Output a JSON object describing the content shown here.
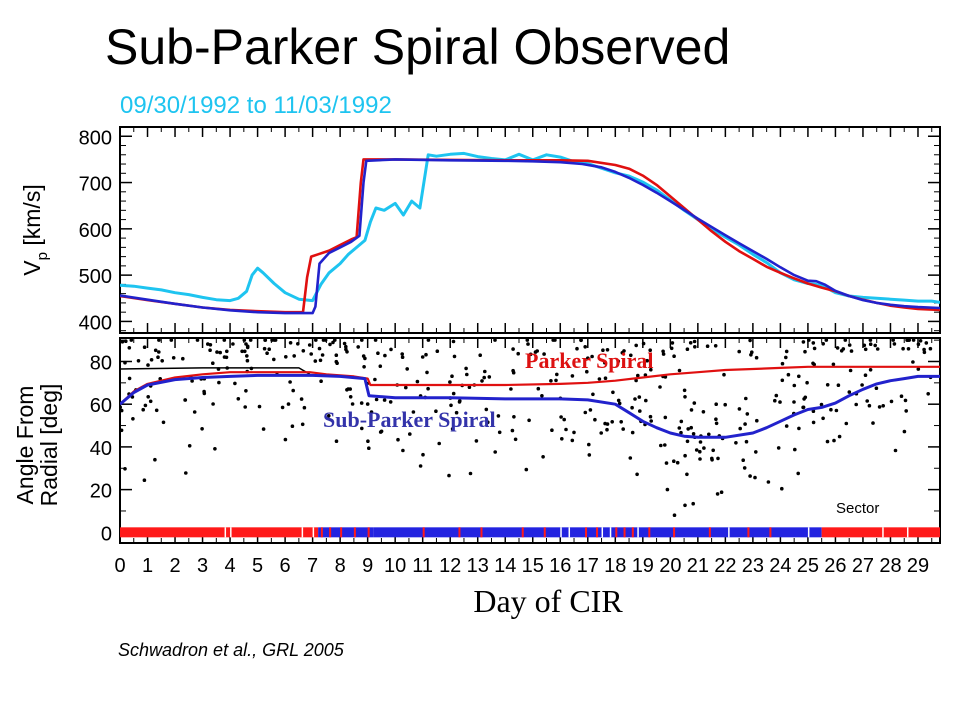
{
  "slide": {
    "title": "Sub-Parker Spiral Observed",
    "subtitle": "09/30/1992 to 11/03/1992",
    "citation": "Schwadron et al., GRL 2005"
  },
  "colors": {
    "observed_speed": "#1ec4f0",
    "model_red": "#e01010",
    "model_blue": "#2222cc",
    "parker_label": "#dd1111",
    "subparker_label": "#3333aa",
    "sector_red": "#ff1a1a",
    "sector_blue": "#2323e0",
    "scatter": "#000000"
  },
  "chart_data": [
    {
      "type": "line",
      "panel": "top",
      "ylabel_main": "V",
      "ylabel_sub": "p",
      "ylabel_unit": " [km/s]",
      "xlim": [
        0,
        29.8
      ],
      "ylim": [
        375,
        820
      ],
      "yticks": [
        400,
        500,
        600,
        700,
        800
      ],
      "series": [
        {
          "key": "observed",
          "color_key": "observed_speed",
          "points": [
            [
              0,
              478
            ],
            [
              0.5,
              476
            ],
            [
              1,
              472
            ],
            [
              1.5,
              468
            ],
            [
              2,
              462
            ],
            [
              2.5,
              458
            ],
            [
              3,
              452
            ],
            [
              3.5,
              447
            ],
            [
              4,
              445
            ],
            [
              4.3,
              450
            ],
            [
              4.6,
              465
            ],
            [
              4.8,
              500
            ],
            [
              5,
              515
            ],
            [
              5.2,
              505
            ],
            [
              5.6,
              482
            ],
            [
              6,
              462
            ],
            [
              6.5,
              448
            ],
            [
              7,
              445
            ],
            [
              7.3,
              480
            ],
            [
              7.6,
              505
            ],
            [
              8,
              525
            ],
            [
              8.3,
              545
            ],
            [
              8.6,
              560
            ],
            [
              8.9,
              575
            ],
            [
              9.1,
              615
            ],
            [
              9.3,
              645
            ],
            [
              9.6,
              640
            ],
            [
              10,
              655
            ],
            [
              10.3,
              630
            ],
            [
              10.6,
              660
            ],
            [
              10.9,
              645
            ],
            [
              11.2,
              760
            ],
            [
              11.5,
              757
            ],
            [
              12,
              761
            ],
            [
              12.5,
              763
            ],
            [
              13,
              756
            ],
            [
              13.5,
              752
            ],
            [
              14,
              749
            ],
            [
              14.5,
              761
            ],
            [
              15,
              749
            ],
            [
              15.5,
              760
            ],
            [
              16,
              755
            ],
            [
              16.5,
              745
            ],
            [
              17,
              741
            ],
            [
              17.5,
              731
            ],
            [
              18,
              721
            ],
            [
              18.5,
              714
            ],
            [
              19,
              701
            ],
            [
              19.5,
              684
            ],
            [
              20,
              662
            ],
            [
              20.5,
              640
            ],
            [
              21,
              620
            ],
            [
              21.5,
              600
            ],
            [
              22,
              582
            ],
            [
              22.5,
              565
            ],
            [
              23,
              545
            ],
            [
              23.5,
              527
            ],
            [
              24,
              505
            ],
            [
              24.5,
              490
            ],
            [
              25,
              482
            ],
            [
              25.3,
              480
            ],
            [
              25.6,
              475
            ],
            [
              26,
              462
            ],
            [
              26.5,
              455
            ],
            [
              27,
              452
            ],
            [
              27.5,
              450
            ],
            [
              28,
              448
            ],
            [
              28.5,
              446
            ],
            [
              29,
              444
            ],
            [
              29.5,
              444
            ],
            [
              29.8,
              441
            ]
          ]
        },
        {
          "key": "model_red",
          "color_key": "model_red",
          "points": [
            [
              0,
              455
            ],
            [
              1,
              446
            ],
            [
              2,
              438
            ],
            [
              3,
              430
            ],
            [
              4,
              425
            ],
            [
              5,
              422
            ],
            [
              6,
              420
            ],
            [
              6.65,
              420
            ],
            [
              6.8,
              495
            ],
            [
              6.95,
              540
            ],
            [
              7.2,
              545
            ],
            [
              7.6,
              553
            ],
            [
              8,
              565
            ],
            [
              8.4,
              577
            ],
            [
              8.6,
              582
            ],
            [
              8.75,
              700
            ],
            [
              8.85,
              750
            ],
            [
              10,
              750
            ],
            [
              12,
              749
            ],
            [
              14,
              748
            ],
            [
              16,
              748
            ],
            [
              17,
              747
            ],
            [
              18,
              738
            ],
            [
              18.5,
              730
            ],
            [
              19,
              715
            ],
            [
              19.5,
              695
            ],
            [
              20,
              670
            ],
            [
              20.5,
              645
            ],
            [
              21,
              620
            ],
            [
              21.5,
              595
            ],
            [
              22,
              572
            ],
            [
              22.5,
              552
            ],
            [
              23,
              535
            ],
            [
              23.5,
              518
            ],
            [
              24,
              505
            ],
            [
              24.5,
              493
            ],
            [
              25,
              482
            ],
            [
              25.5,
              473
            ],
            [
              26,
              465
            ],
            [
              26.5,
              455
            ],
            [
              27,
              447
            ],
            [
              27.5,
              440
            ],
            [
              28,
              434
            ],
            [
              28.5,
              430
            ],
            [
              29,
              427
            ],
            [
              29.8,
              425
            ]
          ]
        },
        {
          "key": "model_blue",
          "color_key": "model_blue",
          "points": [
            [
              0,
              456
            ],
            [
              1,
              447
            ],
            [
              2,
              438
            ],
            [
              3,
              430
            ],
            [
              4,
              424
            ],
            [
              5,
              420
            ],
            [
              6,
              418
            ],
            [
              7,
              418
            ],
            [
              7.1,
              432
            ],
            [
              7.25,
              525
            ],
            [
              7.6,
              548
            ],
            [
              8,
              560
            ],
            [
              8.4,
              572
            ],
            [
              8.7,
              585
            ],
            [
              8.85,
              700
            ],
            [
              8.95,
              747
            ],
            [
              10,
              750
            ],
            [
              12,
              748
            ],
            [
              14,
              747
            ],
            [
              15,
              746
            ],
            [
              16,
              744
            ],
            [
              16.8,
              740
            ],
            [
              17.5,
              733
            ],
            [
              18,
              723
            ],
            [
              18.5,
              710
            ],
            [
              19,
              695
            ],
            [
              19.5,
              678
            ],
            [
              20,
              660
            ],
            [
              20.5,
              641
            ],
            [
              21,
              622
            ],
            [
              21.5,
              604
            ],
            [
              22,
              586
            ],
            [
              22.5,
              569
            ],
            [
              23,
              552
            ],
            [
              23.5,
              535
            ],
            [
              24,
              517
            ],
            [
              24.5,
              500
            ],
            [
              25,
              488
            ],
            [
              25.3,
              487
            ],
            [
              25.6,
              480
            ],
            [
              26,
              466
            ],
            [
              26.5,
              455
            ],
            [
              27,
              446
            ],
            [
              27.5,
              440
            ],
            [
              28,
              436
            ],
            [
              28.5,
              433
            ],
            [
              29,
              431
            ],
            [
              29.8,
              429
            ]
          ]
        }
      ]
    },
    {
      "type": "line",
      "panel": "bottom",
      "ylabel_line1": "Angle From",
      "ylabel_line2": "Radial [deg]",
      "xlabel": "Day of CIR",
      "xlim": [
        0,
        29.8
      ],
      "ylim": [
        -5,
        91
      ],
      "yticks": [
        0,
        20,
        40,
        60,
        80
      ],
      "xticks": [
        0,
        1,
        2,
        3,
        4,
        5,
        6,
        7,
        8,
        9,
        10,
        11,
        12,
        13,
        14,
        15,
        16,
        17,
        18,
        19,
        20,
        21,
        22,
        23,
        24,
        25,
        26,
        27,
        28,
        29
      ],
      "annotations": {
        "parker": "Parker Spiral",
        "subparker": "Sub-Parker Spiral",
        "sector": "Sector"
      },
      "series": [
        {
          "key": "black_reference",
          "color_key": "scatter",
          "points": [
            [
              0,
              76.5
            ],
            [
              3,
              77
            ],
            [
              6.5,
              77
            ],
            [
              6.9,
              74
            ]
          ]
        },
        {
          "key": "parker",
          "color_key": "model_red",
          "points": [
            [
              0,
              60
            ],
            [
              0.5,
              66
            ],
            [
              1,
              69.5
            ],
            [
              2,
              72.5
            ],
            [
              3,
              74
            ],
            [
              4,
              75
            ],
            [
              5,
              75
            ],
            [
              6,
              75
            ],
            [
              6.9,
              75
            ],
            [
              7.5,
              74
            ],
            [
              8.5,
              73
            ],
            [
              9,
              72
            ],
            [
              9.1,
              69
            ],
            [
              10,
              69
            ],
            [
              12,
              69
            ],
            [
              14,
              69
            ],
            [
              16,
              69.5
            ],
            [
              17,
              70
            ],
            [
              18,
              71
            ],
            [
              19,
              72.5
            ],
            [
              20,
              74
            ],
            [
              21,
              75
            ],
            [
              22,
              76
            ],
            [
              23,
              76.5
            ],
            [
              24,
              77
            ],
            [
              25,
              77.5
            ],
            [
              26,
              77.5
            ],
            [
              27,
              77.5
            ],
            [
              28,
              77.5
            ],
            [
              29,
              77.5
            ],
            [
              29.8,
              77.5
            ]
          ]
        },
        {
          "key": "subparker",
          "color_key": "model_blue",
          "points": [
            [
              0,
              60
            ],
            [
              0.5,
              65.5
            ],
            [
              1,
              69
            ],
            [
              2,
              71.5
            ],
            [
              3,
              72.5
            ],
            [
              4,
              73
            ],
            [
              5,
              73.5
            ],
            [
              6,
              73.5
            ],
            [
              7,
              73.5
            ],
            [
              8,
              73
            ],
            [
              8.9,
              72
            ],
            [
              9.05,
              64
            ],
            [
              10,
              63
            ],
            [
              12,
              63
            ],
            [
              14,
              62.5
            ],
            [
              16,
              62.5
            ],
            [
              17,
              62
            ],
            [
              18,
              60
            ],
            [
              18.5,
              56
            ],
            [
              19,
              52
            ],
            [
              19.5,
              49
            ],
            [
              20,
              46.5
            ],
            [
              20.5,
              45
            ],
            [
              21,
              44.5
            ],
            [
              22,
              44.5
            ],
            [
              23,
              46.5
            ],
            [
              23.5,
              49
            ],
            [
              24,
              52
            ],
            [
              24.5,
              55
            ],
            [
              25,
              57.5
            ],
            [
              25.5,
              58.5
            ],
            [
              26,
              60.5
            ],
            [
              26.5,
              64
            ],
            [
              27,
              67
            ],
            [
              27.5,
              69.5
            ],
            [
              28,
              71
            ],
            [
              28.5,
              72
            ],
            [
              29,
              73
            ],
            [
              29.8,
              73
            ]
          ]
        }
      ],
      "scatter_seed": 7,
      "scatter_count": 470,
      "sector_bar": {
        "y_value": 0,
        "segments": [
          [
            0,
            7.2,
            "red"
          ],
          [
            7.2,
            9.2,
            "blue"
          ],
          [
            9.2,
            25.5,
            "blue"
          ],
          [
            25.5,
            29.8,
            "red"
          ]
        ],
        "stripes_red_in_blue": [
          7.3,
          7.6,
          8.0,
          8.5,
          9.0,
          11.0,
          12.3,
          13.1,
          14.6,
          15.4,
          16.9,
          17.3,
          18.0,
          18.3,
          18.6,
          19.2,
          20.1,
          21.4,
          22.8,
          23.6
        ],
        "stripes_white": [
          3.8,
          4.0,
          6.6,
          7.0,
          16.0,
          16.3,
          17.5,
          17.8,
          18.8,
          22.1,
          25.0,
          27.7,
          28.6
        ]
      }
    }
  ]
}
